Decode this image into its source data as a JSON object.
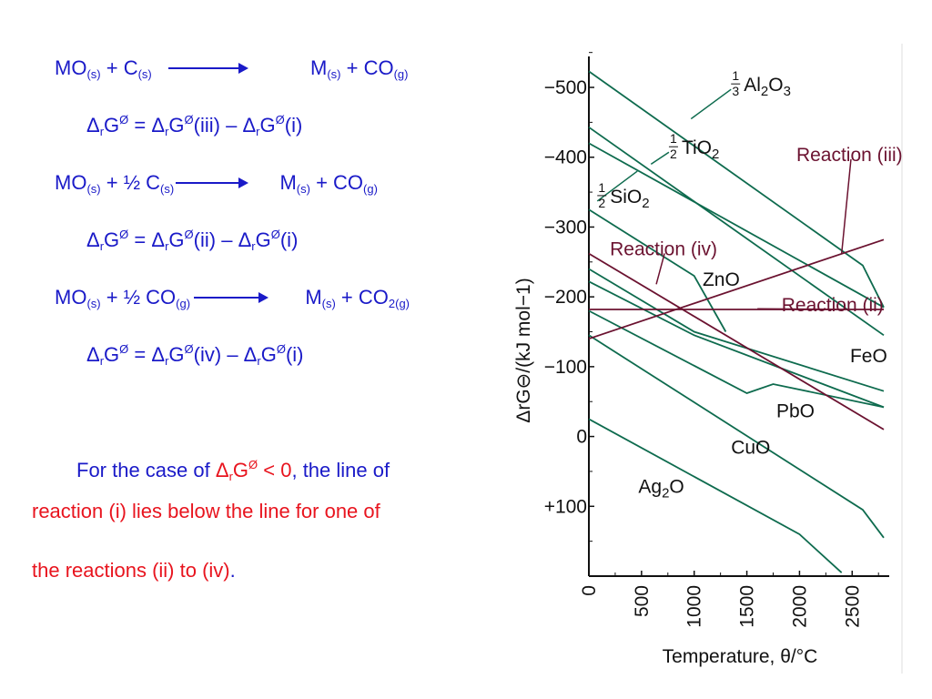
{
  "equations": [
    {
      "reaction": {
        "lhs_a": "MO",
        "lhs_a_sub": "(s)",
        "lhs_b": " + C",
        "lhs_b_sub": "(s)",
        "rhs_a": "M",
        "rhs_a_sub": "(s)",
        "rhs_b": " + CO",
        "rhs_b_sub": "(g)"
      },
      "energy": {
        "prefix": "Δ",
        "r": "r",
        "g": "G",
        "sup": "Ø",
        "eq": " = Δ",
        "ref": "(iii)",
        "minus": " – Δ",
        "ref2": "(i)"
      }
    },
    {
      "reaction": {
        "lhs_a": "MO",
        "lhs_a_sub": "(s)",
        "lhs_b": " + ½ C",
        "lhs_b_sub": "(s)",
        "rhs_a": "M",
        "rhs_a_sub": "(s)",
        "rhs_b": " + CO",
        "rhs_b_sub": "(g)"
      },
      "energy": {
        "prefix": "Δ",
        "r": "r",
        "g": "G",
        "sup": "Ø",
        "eq": " = Δ",
        "ref": "(ii)",
        "minus": " – Δ",
        "ref2": "(i)"
      }
    },
    {
      "reaction": {
        "lhs_a": "MO",
        "lhs_a_sub": "(s)",
        "lhs_b": " + ½ CO",
        "lhs_b_sub": "(g)",
        "rhs_a": "M",
        "rhs_a_sub": "(s)",
        "rhs_b": " + CO",
        "rhs_b_sub": "2(g)"
      },
      "energy": {
        "prefix": "Δ",
        "r": "r",
        "g": "G",
        "sup": "Ø",
        "eq": " = Δ",
        "ref": "(iv)",
        "minus": " – Δ",
        "ref2": "(i)"
      }
    }
  ],
  "note": {
    "line1_a": "For the case of ",
    "line1_delta": "Δ",
    "line1_r": "r",
    "line1_g": "G",
    "line1_sup": "Ø",
    "line1_cond": " < 0",
    "line1_b": ", the line of",
    "line2": "reaction (i) lies below the line for one of",
    "line3_a": "the reactions (ii) to (iv)",
    "line3_dot": "."
  },
  "colors": {
    "blue": "#1a1ac8",
    "red": "#e8141e",
    "green": "#0e6b4e",
    "maroon": "#6b1230"
  },
  "chart_data": {
    "type": "line",
    "xlabel": "Temperature, θ/°C",
    "ylabel": "ΔrG⊖/(kJ mol−1)",
    "xlim": [
      0,
      2800
    ],
    "ylim": [
      -560,
      200
    ],
    "x_ticks": [
      0,
      500,
      1000,
      1500,
      2000,
      2500
    ],
    "x_tick_labels": [
      "0",
      "500",
      "1000",
      "1500",
      "2000",
      "2500"
    ],
    "y_ticks": [
      -500,
      -400,
      -300,
      -200,
      -100,
      0,
      100
    ],
    "y_tick_labels": [
      "−500",
      "−400",
      "−300",
      "−200",
      "−100",
      "0",
      "+100"
    ],
    "series": [
      {
        "name": "⅓ Al₂O₃",
        "color": "green",
        "x": [
          0,
          2600,
          2800
        ],
        "y": [
          -523,
          -245,
          -185
        ]
      },
      {
        "name": "½ TiO₂",
        "color": "green",
        "x": [
          0,
          2800
        ],
        "y": [
          -443,
          -145
        ]
      },
      {
        "name": "½ SiO₂",
        "color": "green",
        "x": [
          0,
          2800
        ],
        "y": [
          -420,
          -185
        ]
      },
      {
        "name": "ZnO",
        "color": "green",
        "x": [
          0,
          1000,
          1300
        ],
        "y": [
          -325,
          -230,
          -150
        ]
      },
      {
        "name": "FeO",
        "color": "green",
        "x": [
          0,
          1000,
          2800
        ],
        "y": [
          -240,
          -150,
          -65
        ]
      },
      {
        "name": "",
        "color": "green",
        "x": [
          0,
          1000,
          2800
        ],
        "y": [
          -222,
          -145,
          -42
        ]
      },
      {
        "name": "PbO",
        "color": "green",
        "x": [
          0,
          1500,
          1750,
          2800
        ],
        "y": [
          -180,
          -62,
          -75,
          -42
        ]
      },
      {
        "name": "CuO",
        "color": "green",
        "x": [
          0,
          2600,
          2800
        ],
        "y": [
          -145,
          105,
          145
        ]
      },
      {
        "name": "Ag₂O",
        "color": "green",
        "x": [
          0,
          2000,
          2400
        ],
        "y": [
          -25,
          140,
          195
        ]
      },
      {
        "name": "Reaction (iii)",
        "color": "maroon",
        "x": [
          0,
          2800
        ],
        "y": [
          -140,
          -282
        ]
      },
      {
        "name": "Reaction (ii)",
        "color": "maroon",
        "x": [
          0,
          2800
        ],
        "y": [
          -182,
          -182
        ]
      },
      {
        "name": "Reaction (iv)",
        "color": "maroon",
        "x": [
          0,
          2800
        ],
        "y": [
          -262,
          -10
        ]
      }
    ],
    "annotations": [
      {
        "text": "Al",
        "sub": "2",
        "text2": "O",
        "sub2": "3",
        "frac": "1/3",
        "lx": 1350,
        "ly": -505,
        "px": 970,
        "py": -455,
        "color": "dark"
      },
      {
        "text": "TiO",
        "sub": "2",
        "text2": "",
        "sub2": "",
        "frac": "1/2",
        "lx": 760,
        "ly": -415,
        "px": 590,
        "py": -390,
        "color": "dark"
      },
      {
        "text": "SiO",
        "sub": "2",
        "text2": "",
        "sub2": "",
        "frac": "1/2",
        "lx": 80,
        "ly": -345,
        "px": 460,
        "py": -380,
        "color": "dark"
      },
      {
        "text": "Reaction (iii)",
        "lx": 1970,
        "ly": -405,
        "px": 2400,
        "py": -262,
        "color": "maroon"
      },
      {
        "text": "Reaction (iv)",
        "lx": 200,
        "ly": -270,
        "px": 640,
        "py": -218,
        "color": "maroon"
      },
      {
        "text": "ZnO",
        "lx": 1080,
        "ly": -226,
        "color": "dark"
      },
      {
        "text": "Reaction (ii)",
        "lx": 1830,
        "ly": -190,
        "px": 1600,
        "py": -183,
        "color": "maroon"
      },
      {
        "text": "FeO",
        "lx": 2480,
        "ly": -117,
        "color": "dark"
      },
      {
        "text": "PbO",
        "lx": 1780,
        "ly": -38,
        "color": "dark"
      },
      {
        "text": "CuO",
        "lx": 1350,
        "ly": 14,
        "color": "dark"
      },
      {
        "text": "Ag",
        "sub": "2",
        "text2": "O",
        "sub2": "",
        "frac": "",
        "lx": 470,
        "ly": 70,
        "color": "dark"
      }
    ]
  }
}
